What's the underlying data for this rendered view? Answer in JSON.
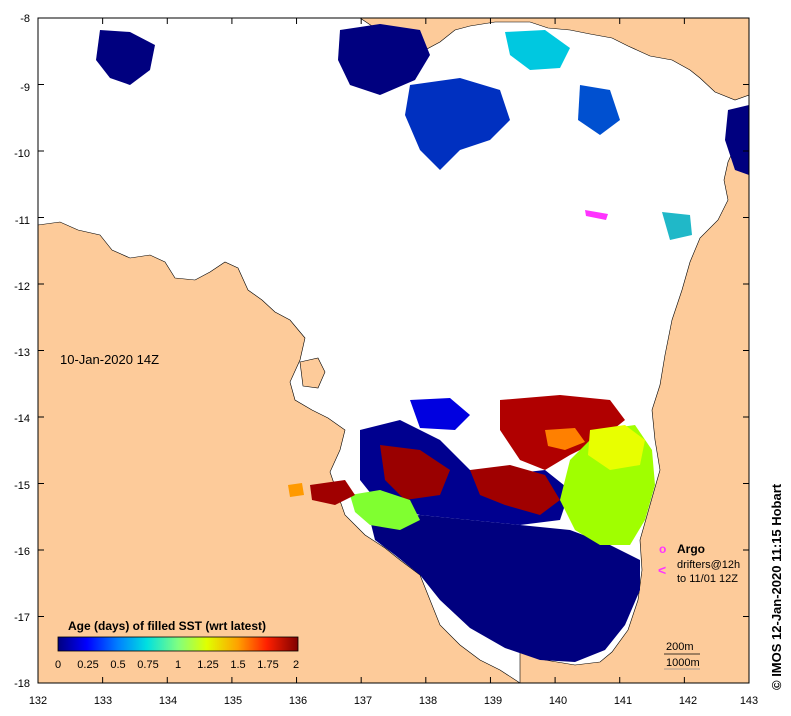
{
  "map": {
    "timestamp_label": "10-Jan-2020 14Z",
    "x_ticks": [
      "132",
      "133",
      "134",
      "135",
      "136",
      "137",
      "138",
      "139",
      "140",
      "141",
      "142",
      "143"
    ],
    "y_ticks": [
      "-8",
      "-9",
      "-10",
      "-11",
      "-12",
      "-13",
      "-14",
      "-15",
      "-16",
      "-17",
      "-18"
    ],
    "colors": {
      "land": "#fdcb9a",
      "no_data": "#ffffff",
      "argo": "#ff33ff"
    }
  },
  "colorbar": {
    "title": "Age (days) of filled SST (wrt latest)",
    "tick_labels": [
      "0",
      "0.25",
      "0.5",
      "0.75",
      "1",
      "1.25",
      "1.5",
      "1.75",
      "2"
    ]
  },
  "legend": {
    "argo_label": "Argo",
    "drifters_line1": "drifters@12h",
    "drifters_line2": "to 11/01 12Z",
    "argo_symbol": "o",
    "drifter_symbol": "<"
  },
  "scale": {
    "contour_200m": "200m",
    "contour_1000m": "1000m"
  },
  "credit": "© IMOS 12-Jan-2020 11:15 Hobart"
}
